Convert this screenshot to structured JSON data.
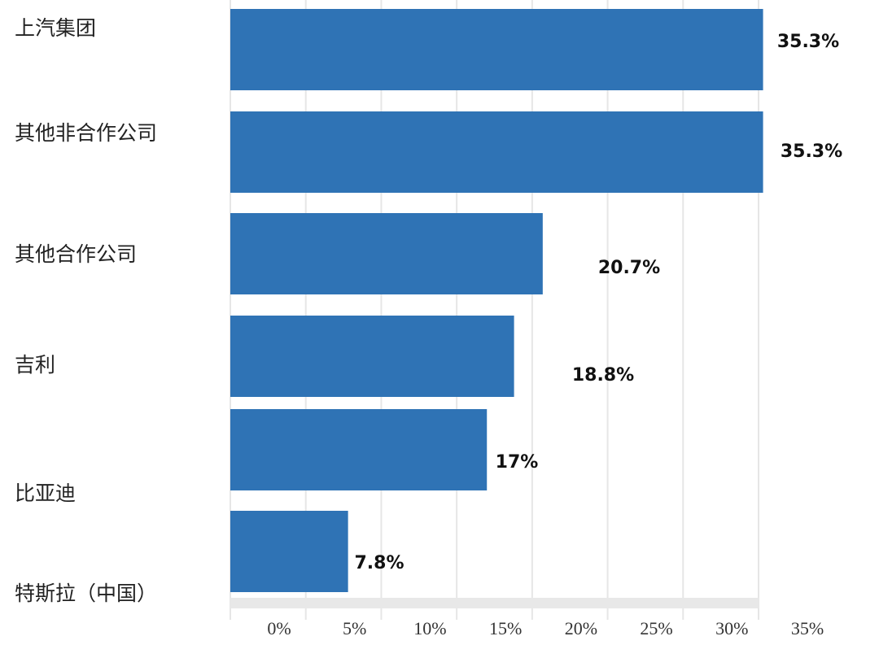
{
  "chart_data": {
    "type": "barh",
    "categories": [
      "上汽集团",
      "其他非合作公司",
      "其他合作公司",
      "吉利",
      "比亚迪",
      "特斯拉（中国）"
    ],
    "values": [
      35.3,
      35.3,
      20.7,
      18.8,
      17,
      7.8
    ],
    "value_labels": [
      "35.3%",
      "35.3%",
      "20.7%",
      "18.8%",
      "17%",
      "7.8%"
    ],
    "color": "#2f73b5",
    "xlim": [
      0,
      35
    ],
    "xticks": [
      {
        "value": 0,
        "label": "0%"
      },
      {
        "value": 5,
        "label": "5%"
      },
      {
        "value": 10,
        "label": "10%"
      },
      {
        "value": 15,
        "label": "15%"
      },
      {
        "value": 20,
        "label": "20%"
      },
      {
        "value": 25,
        "label": "25%"
      },
      {
        "value": 30,
        "label": "30%"
      },
      {
        "value": 35,
        "label": "35%"
      }
    ],
    "grid": true
  }
}
